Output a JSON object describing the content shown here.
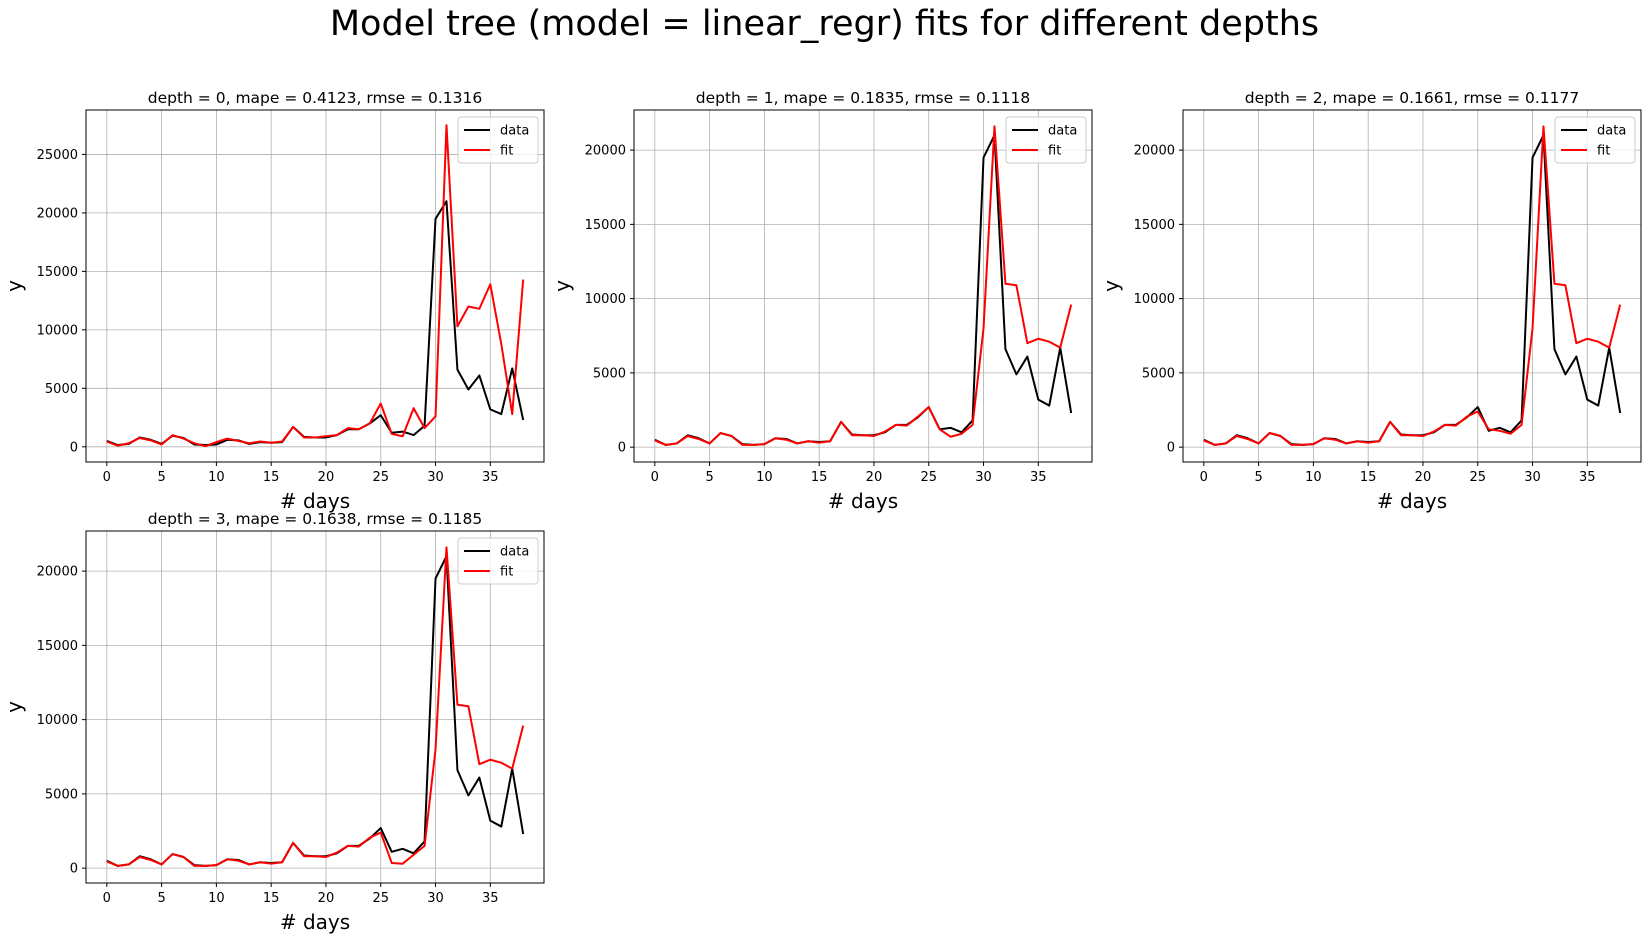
{
  "figure": {
    "suptitle": "Model tree (model = linear_regr) fits for different depths"
  },
  "chart_data": [
    {
      "type": "line",
      "title": "depth = 0, mape = 0.4123, rmse = 0.1316",
      "xlabel": "# days",
      "ylabel": "y",
      "xlim": [
        -1.9,
        39.9
      ],
      "ylim": [
        -1300,
        28800
      ],
      "xticks": [
        0,
        5,
        10,
        15,
        20,
        25,
        30,
        35
      ],
      "yticks": [
        0,
        5000,
        10000,
        15000,
        20000,
        25000
      ],
      "grid": true,
      "legend_position": "upper right",
      "x": [
        0,
        1,
        2,
        3,
        4,
        5,
        6,
        7,
        8,
        9,
        10,
        11,
        12,
        13,
        14,
        15,
        16,
        17,
        18,
        19,
        20,
        21,
        22,
        23,
        24,
        25,
        26,
        27,
        28,
        29,
        30,
        31,
        32,
        33,
        34,
        35,
        36,
        37,
        38
      ],
      "series": [
        {
          "name": "data",
          "color": "#000000",
          "values": [
            500,
            150,
            250,
            800,
            600,
            250,
            950,
            750,
            200,
            150,
            200,
            600,
            550,
            250,
            400,
            350,
            400,
            1700,
            850,
            800,
            800,
            1000,
            1500,
            1500,
            2000,
            2700,
            1200,
            1300,
            1000,
            1800,
            19500,
            21000,
            6600,
            4900,
            6100,
            3200,
            2800,
            6700,
            2300
          ]
        },
        {
          "name": "fit",
          "color": "#ff0000",
          "values": [
            450,
            100,
            300,
            750,
            550,
            200,
            1000,
            700,
            300,
            50,
            400,
            700,
            500,
            300,
            450,
            350,
            450,
            1700,
            800,
            800,
            900,
            1000,
            1600,
            1500,
            2000,
            3700,
            1100,
            900,
            3300,
            1600,
            2600,
            27500,
            10300,
            12000,
            11800,
            13900,
            8800,
            2800,
            14300
          ]
        }
      ]
    },
    {
      "type": "line",
      "title": "depth = 1, mape = 0.1835, rmse = 0.1118",
      "xlabel": "# days",
      "ylabel": "y",
      "xlim": [
        -1.9,
        39.9
      ],
      "ylim": [
        -1000,
        22700
      ],
      "xticks": [
        0,
        5,
        10,
        15,
        20,
        25,
        30,
        35
      ],
      "yticks": [
        0,
        5000,
        10000,
        15000,
        20000
      ],
      "grid": true,
      "legend_position": "upper right",
      "x": [
        0,
        1,
        2,
        3,
        4,
        5,
        6,
        7,
        8,
        9,
        10,
        11,
        12,
        13,
        14,
        15,
        16,
        17,
        18,
        19,
        20,
        21,
        22,
        23,
        24,
        25,
        26,
        27,
        28,
        29,
        30,
        31,
        32,
        33,
        34,
        35,
        36,
        37,
        38
      ],
      "series": [
        {
          "name": "data",
          "color": "#000000",
          "values": [
            500,
            150,
            250,
            800,
            600,
            250,
            950,
            750,
            200,
            150,
            200,
            600,
            550,
            250,
            400,
            350,
            400,
            1700,
            850,
            800,
            800,
            1000,
            1500,
            1500,
            2000,
            2700,
            1200,
            1300,
            1000,
            1800,
            19500,
            21000,
            6600,
            4900,
            6100,
            3200,
            2800,
            6700,
            2300
          ]
        },
        {
          "name": "fit",
          "color": "#ff0000",
          "values": [
            450,
            150,
            250,
            750,
            550,
            250,
            950,
            750,
            150,
            150,
            200,
            600,
            500,
            250,
            400,
            300,
            400,
            1700,
            800,
            800,
            750,
            1050,
            1500,
            1450,
            2050,
            2700,
            1200,
            700,
            900,
            1500,
            8000,
            21600,
            11000,
            10900,
            7000,
            7300,
            7100,
            6700,
            9600
          ]
        }
      ]
    },
    {
      "type": "line",
      "title": "depth = 2, mape = 0.1661, rmse = 0.1177",
      "xlabel": "# days",
      "ylabel": "y",
      "xlim": [
        -1.9,
        39.9
      ],
      "ylim": [
        -1000,
        22700
      ],
      "xticks": [
        0,
        5,
        10,
        15,
        20,
        25,
        30,
        35
      ],
      "yticks": [
        0,
        5000,
        10000,
        15000,
        20000
      ],
      "grid": true,
      "legend_position": "upper right",
      "x": [
        0,
        1,
        2,
        3,
        4,
        5,
        6,
        7,
        8,
        9,
        10,
        11,
        12,
        13,
        14,
        15,
        16,
        17,
        18,
        19,
        20,
        21,
        22,
        23,
        24,
        25,
        26,
        27,
        28,
        29,
        30,
        31,
        32,
        33,
        34,
        35,
        36,
        37,
        38
      ],
      "series": [
        {
          "name": "data",
          "color": "#000000",
          "values": [
            500,
            150,
            250,
            800,
            600,
            250,
            950,
            750,
            200,
            150,
            200,
            600,
            550,
            250,
            400,
            350,
            400,
            1700,
            850,
            800,
            800,
            1000,
            1500,
            1500,
            2000,
            2700,
            1100,
            1300,
            1000,
            1800,
            19500,
            21000,
            6600,
            4900,
            6100,
            3200,
            2800,
            6700,
            2300
          ]
        },
        {
          "name": "fit",
          "color": "#ff0000",
          "values": [
            450,
            150,
            250,
            750,
            550,
            250,
            950,
            750,
            150,
            150,
            200,
            600,
            500,
            250,
            400,
            300,
            400,
            1700,
            800,
            800,
            750,
            1050,
            1500,
            1450,
            2050,
            2400,
            1200,
            1100,
            900,
            1500,
            8000,
            21600,
            11000,
            10900,
            7000,
            7300,
            7100,
            6700,
            9600
          ]
        }
      ]
    },
    {
      "type": "line",
      "title": "depth = 3, mape = 0.1638, rmse = 0.1185",
      "xlabel": "# days",
      "ylabel": "y",
      "xlim": [
        -1.9,
        39.9
      ],
      "ylim": [
        -1000,
        22700
      ],
      "xticks": [
        0,
        5,
        10,
        15,
        20,
        25,
        30,
        35
      ],
      "yticks": [
        0,
        5000,
        10000,
        15000,
        20000
      ],
      "grid": true,
      "legend_position": "upper right",
      "x": [
        0,
        1,
        2,
        3,
        4,
        5,
        6,
        7,
        8,
        9,
        10,
        11,
        12,
        13,
        14,
        15,
        16,
        17,
        18,
        19,
        20,
        21,
        22,
        23,
        24,
        25,
        26,
        27,
        28,
        29,
        30,
        31,
        32,
        33,
        34,
        35,
        36,
        37,
        38
      ],
      "series": [
        {
          "name": "data",
          "color": "#000000",
          "values": [
            500,
            150,
            250,
            800,
            600,
            250,
            950,
            750,
            200,
            150,
            200,
            600,
            550,
            250,
            400,
            350,
            400,
            1700,
            850,
            800,
            800,
            1000,
            1500,
            1500,
            2000,
            2700,
            1100,
            1300,
            1000,
            1800,
            19500,
            21000,
            6600,
            4900,
            6100,
            3200,
            2800,
            6700,
            2300
          ]
        },
        {
          "name": "fit",
          "color": "#ff0000",
          "values": [
            450,
            150,
            250,
            750,
            550,
            250,
            950,
            750,
            150,
            150,
            200,
            600,
            500,
            250,
            400,
            300,
            400,
            1700,
            800,
            800,
            750,
            1050,
            1500,
            1450,
            2050,
            2400,
            350,
            300,
            900,
            1500,
            8000,
            21600,
            11000,
            10900,
            7000,
            7300,
            7100,
            6700,
            9600
          ]
        }
      ]
    }
  ]
}
